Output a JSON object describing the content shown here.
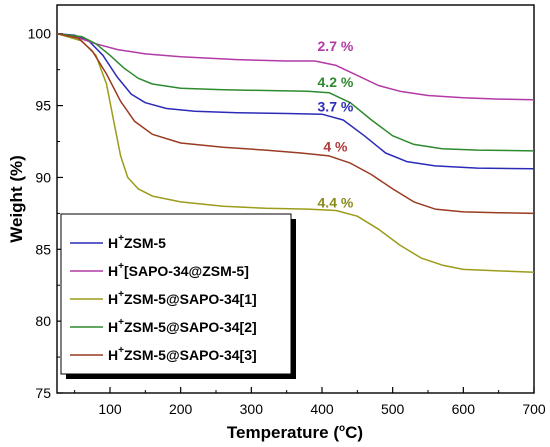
{
  "chart_data": {
    "type": "line",
    "xlabel": "Temperature (",
    "xlabel_unit": "C)",
    "xlabel_degree": "o",
    "ylabel": "Weight (%)",
    "xlim": [
      25,
      700
    ],
    "ylim": [
      75,
      102
    ],
    "xticks": [
      100,
      200,
      300,
      400,
      500,
      600,
      700
    ],
    "yticks": [
      75,
      80,
      85,
      90,
      95,
      100
    ],
    "grid": false,
    "legend_position": "bottom-left",
    "series": [
      {
        "name_sup": "+",
        "name_prefix": "H",
        "name_rest": "ZSM-5",
        "color": "#2b2bb8",
        "points": [
          [
            25,
            100
          ],
          [
            50,
            99.9
          ],
          [
            70,
            99.5
          ],
          [
            90,
            98.5
          ],
          [
            110,
            97.0
          ],
          [
            130,
            95.8
          ],
          [
            150,
            95.2
          ],
          [
            180,
            94.8
          ],
          [
            220,
            94.6
          ],
          [
            280,
            94.5
          ],
          [
            350,
            94.45
          ],
          [
            400,
            94.4
          ],
          [
            430,
            94.0
          ],
          [
            460,
            92.9
          ],
          [
            490,
            91.7
          ],
          [
            520,
            91.1
          ],
          [
            560,
            90.8
          ],
          [
            620,
            90.65
          ],
          [
            700,
            90.6
          ]
        ]
      },
      {
        "name_sup": "+",
        "name_prefix": "H",
        "name_rest": "[SAPO-34@ZSM-5]",
        "color": "#b23aa6",
        "points": [
          [
            25,
            100
          ],
          [
            50,
            99.8
          ],
          [
            80,
            99.3
          ],
          [
            110,
            98.9
          ],
          [
            150,
            98.6
          ],
          [
            200,
            98.4
          ],
          [
            280,
            98.2
          ],
          [
            350,
            98.1
          ],
          [
            390,
            98.1
          ],
          [
            420,
            97.8
          ],
          [
            450,
            97.1
          ],
          [
            480,
            96.4
          ],
          [
            510,
            96.0
          ],
          [
            550,
            95.7
          ],
          [
            600,
            95.55
          ],
          [
            650,
            95.45
          ],
          [
            700,
            95.4
          ]
        ]
      },
      {
        "name_sup": "+",
        "name_prefix": "H",
        "name_rest": "ZSM-5@SAPO-34[1]",
        "color": "#9c9c1a",
        "points": [
          [
            25,
            100
          ],
          [
            60,
            99.5
          ],
          [
            80,
            98.5
          ],
          [
            95,
            96.5
          ],
          [
            105,
            94.0
          ],
          [
            115,
            91.5
          ],
          [
            125,
            90.0
          ],
          [
            140,
            89.2
          ],
          [
            160,
            88.7
          ],
          [
            200,
            88.3
          ],
          [
            260,
            88.0
          ],
          [
            320,
            87.85
          ],
          [
            380,
            87.8
          ],
          [
            420,
            87.7
          ],
          [
            450,
            87.3
          ],
          [
            480,
            86.4
          ],
          [
            510,
            85.3
          ],
          [
            540,
            84.4
          ],
          [
            570,
            83.9
          ],
          [
            600,
            83.6
          ],
          [
            650,
            83.5
          ],
          [
            700,
            83.4
          ]
        ]
      },
      {
        "name_sup": "+",
        "name_prefix": "H",
        "name_rest": "ZSM-5@SAPO-34[2]",
        "color": "#2e8a2e",
        "points": [
          [
            25,
            100
          ],
          [
            60,
            99.8
          ],
          [
            80,
            99.3
          ],
          [
            100,
            98.5
          ],
          [
            120,
            97.6
          ],
          [
            140,
            96.9
          ],
          [
            160,
            96.5
          ],
          [
            200,
            96.2
          ],
          [
            260,
            96.1
          ],
          [
            320,
            96.05
          ],
          [
            380,
            96.0
          ],
          [
            410,
            95.9
          ],
          [
            440,
            95.2
          ],
          [
            470,
            94.0
          ],
          [
            500,
            92.9
          ],
          [
            530,
            92.3
          ],
          [
            570,
            92.0
          ],
          [
            620,
            91.9
          ],
          [
            700,
            91.85
          ]
        ]
      },
      {
        "name_sup": "+",
        "name_prefix": "H",
        "name_rest": "ZSM-5@SAPO-34[3]",
        "color": "#9a3a22",
        "points": [
          [
            25,
            100
          ],
          [
            55,
            99.7
          ],
          [
            75,
            98.8
          ],
          [
            95,
            97.2
          ],
          [
            115,
            95.3
          ],
          [
            135,
            93.9
          ],
          [
            160,
            93.0
          ],
          [
            200,
            92.4
          ],
          [
            260,
            92.1
          ],
          [
            320,
            91.9
          ],
          [
            370,
            91.7
          ],
          [
            410,
            91.5
          ],
          [
            440,
            91.0
          ],
          [
            470,
            90.2
          ],
          [
            500,
            89.2
          ],
          [
            530,
            88.3
          ],
          [
            560,
            87.8
          ],
          [
            600,
            87.6
          ],
          [
            650,
            87.55
          ],
          [
            700,
            87.5
          ]
        ]
      }
    ],
    "annotations": [
      {
        "text": "2.7 %",
        "x": 419,
        "y": 98.8,
        "color": "#b23aa6"
      },
      {
        "text": "4.2 %",
        "x": 419,
        "y": 96.3,
        "color": "#2e8a2e"
      },
      {
        "text": "3.7 %",
        "x": 419,
        "y": 94.6,
        "color": "#2b2bb8"
      },
      {
        "text": "4 %",
        "x": 419,
        "y": 91.8,
        "color": "#b23a3a"
      },
      {
        "text": "4.4 %",
        "x": 419,
        "y": 87.9,
        "color": "#8a8a1a"
      }
    ]
  }
}
